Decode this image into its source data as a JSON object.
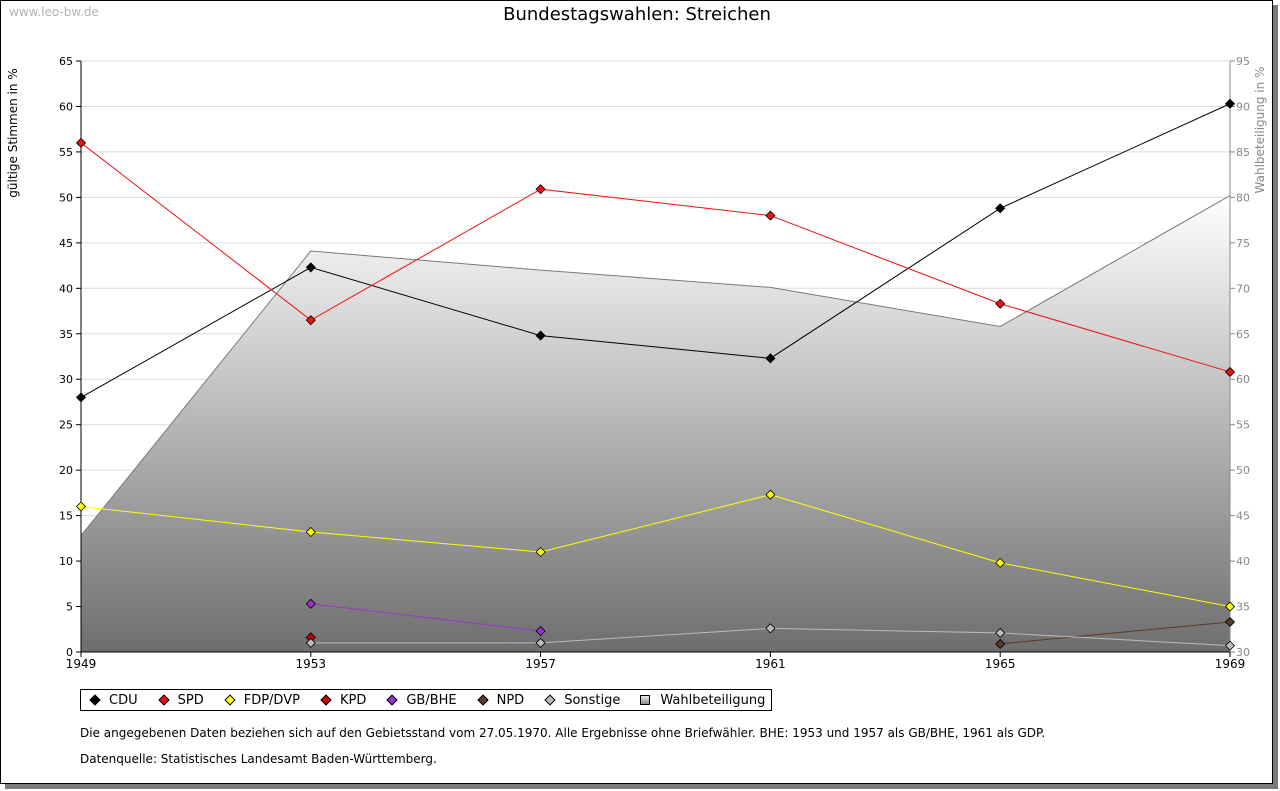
{
  "watermark": "www.leo-bw.de",
  "notes": {
    "text1": "Die angegebenen Daten beziehen sich auf den Gebietsstand vom 27.05.1970. Alle Ergebnisse ohne Briefwähler. BHE: 1953 und 1957 als GB/BHE, 1961 als GDP.",
    "text2": "Datenquelle: Statistisches Landesamt Baden-Württemberg."
  },
  "legend": [
    {
      "label": "CDU",
      "color": "#000000",
      "marker": "diamond"
    },
    {
      "label": "SPD",
      "color": "#ee1111",
      "marker": "diamond"
    },
    {
      "label": "FDP/DVP",
      "color": "#ffff00",
      "marker": "diamond"
    },
    {
      "label": "KPD",
      "color": "#cc0000",
      "marker": "diamond"
    },
    {
      "label": "GB/BHE",
      "color": "#9933cc",
      "marker": "diamond"
    },
    {
      "label": "NPD",
      "color": "#5a3a2a",
      "marker": "diamond"
    },
    {
      "label": "Sonstige",
      "color": "#bbbbbb",
      "marker": "diamond"
    },
    {
      "label": "Wahlbeteiligung",
      "color": "#999999",
      "marker": "square"
    }
  ],
  "chart_data": {
    "type": "line",
    "title": "Bundestagswahlen: Streichen",
    "ylabel": "gültige Stimmen in %",
    "y2label": "Wahlbeteiligung in %",
    "x": [
      1949,
      1953,
      1957,
      1961,
      1965,
      1969
    ],
    "ylim": [
      0,
      65
    ],
    "y2lim": [
      30,
      95
    ],
    "yticks": [
      0,
      5,
      10,
      15,
      20,
      25,
      30,
      35,
      40,
      45,
      50,
      55,
      60,
      65
    ],
    "y2ticks": [
      30,
      35,
      40,
      45,
      50,
      55,
      60,
      65,
      70,
      75,
      80,
      85,
      90,
      95
    ],
    "grid": true,
    "legend_position": "bottom",
    "area": {
      "name": "Wahlbeteiligung",
      "axis": "right",
      "values": [
        42.8,
        74.1,
        72.0,
        70.1,
        65.8,
        80.2
      ]
    },
    "series": [
      {
        "name": "CDU",
        "color": "#000000",
        "values": [
          28.0,
          42.3,
          34.8,
          32.3,
          48.8,
          60.3
        ]
      },
      {
        "name": "SPD",
        "color": "#ee1111",
        "values": [
          56.0,
          36.5,
          50.9,
          48.0,
          38.3,
          30.8
        ]
      },
      {
        "name": "FDP/DVP",
        "color": "#ffff00",
        "values": [
          16.0,
          13.2,
          11.0,
          17.3,
          9.8,
          5.0
        ]
      },
      {
        "name": "KPD",
        "color": "#cc0000",
        "values": [
          null,
          1.6,
          null,
          null,
          null,
          null
        ]
      },
      {
        "name": "GB/BHE",
        "color": "#9933cc",
        "values": [
          null,
          5.3,
          2.3,
          null,
          null,
          null
        ]
      },
      {
        "name": "NPD",
        "color": "#5a3a2a",
        "values": [
          null,
          null,
          null,
          null,
          0.9,
          3.3
        ]
      },
      {
        "name": "Sonstige",
        "color": "#bbbbbb",
        "values": [
          null,
          1.0,
          1.0,
          2.6,
          2.1,
          0.7
        ]
      }
    ]
  }
}
